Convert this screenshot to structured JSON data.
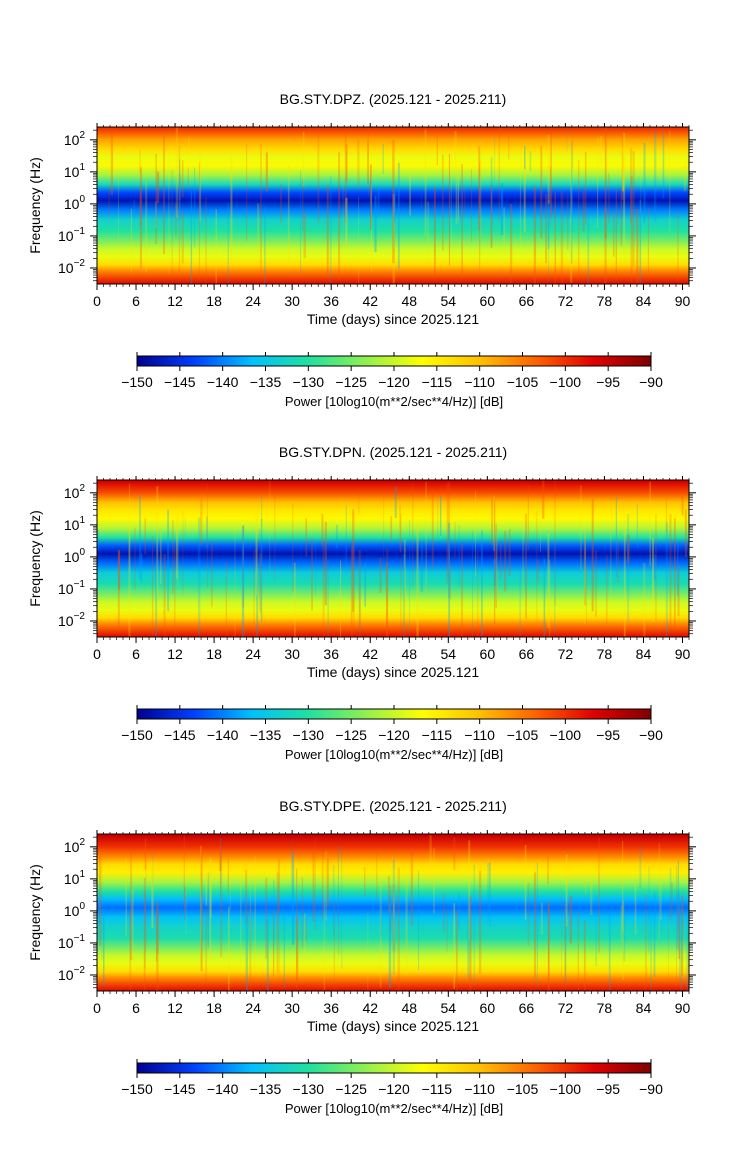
{
  "chart_data": [
    {
      "type": "heatmap",
      "title": "BG.STY.DPZ. (2025.121 - 2025.211)",
      "xlabel": "Time (days) since 2025.121",
      "ylabel": "Frequency (Hz)",
      "xlim": [
        0,
        91
      ],
      "ylim_log10": [
        -2.5,
        2.4
      ],
      "y_scale": "log",
      "x_ticks": [
        "0",
        "6",
        "12",
        "18",
        "24",
        "30",
        "36",
        "42",
        "48",
        "54",
        "60",
        "66",
        "72",
        "78",
        "84",
        "90"
      ],
      "y_ticks": [
        {
          "base": "10",
          "exp": "2"
        },
        {
          "base": "10",
          "exp": "1"
        },
        {
          "base": "10",
          "exp": "0"
        },
        {
          "base": "10",
          "exp": "−1"
        },
        {
          "base": "10",
          "exp": "−2"
        }
      ],
      "profile_db": [
        {
          "log10f": 2.35,
          "db": -100
        },
        {
          "log10f": 2.0,
          "db": -108
        },
        {
          "log10f": 1.7,
          "db": -113
        },
        {
          "log10f": 1.45,
          "db": -118
        },
        {
          "log10f": 1.2,
          "db": -116
        },
        {
          "log10f": 0.9,
          "db": -122
        },
        {
          "log10f": 0.6,
          "db": -132
        },
        {
          "log10f": 0.35,
          "db": -143
        },
        {
          "log10f": 0.1,
          "db": -148
        },
        {
          "log10f": -0.2,
          "db": -140
        },
        {
          "log10f": -0.5,
          "db": -133
        },
        {
          "log10f": -0.85,
          "db": -130
        },
        {
          "log10f": -1.2,
          "db": -124
        },
        {
          "log10f": -1.4,
          "db": -120
        },
        {
          "log10f": -1.65,
          "db": -118
        },
        {
          "log10f": -1.9,
          "db": -113
        },
        {
          "log10f": -2.1,
          "db": -106
        },
        {
          "log10f": -2.5,
          "db": -97
        }
      ],
      "colorbar": {
        "label": "Power [10log10(m**2/sec**4/Hz)] [dB]",
        "min": -150,
        "max": -90,
        "ticks": [
          "−150",
          "−145",
          "−140",
          "−135",
          "−130",
          "−125",
          "−120",
          "−115",
          "−110",
          "−105",
          "−100",
          "−95",
          "−90"
        ]
      }
    },
    {
      "type": "heatmap",
      "title": "BG.STY.DPN. (2025.121 - 2025.211)",
      "xlabel": "Time (days) since 2025.121",
      "ylabel": "Frequency (Hz)",
      "xlim": [
        0,
        91
      ],
      "ylim_log10": [
        -2.5,
        2.4
      ],
      "y_scale": "log",
      "x_ticks": [
        "0",
        "6",
        "12",
        "18",
        "24",
        "30",
        "36",
        "42",
        "48",
        "54",
        "60",
        "66",
        "72",
        "78",
        "84",
        "90"
      ],
      "y_ticks": [
        {
          "base": "10",
          "exp": "2"
        },
        {
          "base": "10",
          "exp": "1"
        },
        {
          "base": "10",
          "exp": "0"
        },
        {
          "base": "10",
          "exp": "−1"
        },
        {
          "base": "10",
          "exp": "−2"
        }
      ],
      "profile_db": [
        {
          "log10f": 2.35,
          "db": -96
        },
        {
          "log10f": 2.0,
          "db": -102
        },
        {
          "log10f": 1.7,
          "db": -110
        },
        {
          "log10f": 1.45,
          "db": -114
        },
        {
          "log10f": 1.2,
          "db": -116
        },
        {
          "log10f": 0.9,
          "db": -121
        },
        {
          "log10f": 0.6,
          "db": -130
        },
        {
          "log10f": 0.35,
          "db": -142
        },
        {
          "log10f": 0.1,
          "db": -148
        },
        {
          "log10f": -0.2,
          "db": -141
        },
        {
          "log10f": -0.5,
          "db": -134
        },
        {
          "log10f": -0.85,
          "db": -131
        },
        {
          "log10f": -1.2,
          "db": -124
        },
        {
          "log10f": -1.4,
          "db": -120
        },
        {
          "log10f": -1.65,
          "db": -118
        },
        {
          "log10f": -1.9,
          "db": -113
        },
        {
          "log10f": -2.1,
          "db": -106
        },
        {
          "log10f": -2.5,
          "db": -97
        }
      ],
      "colorbar": {
        "label": "Power [10log10(m**2/sec**4/Hz)] [dB]",
        "min": -150,
        "max": -90,
        "ticks": [
          "−150",
          "−145",
          "−140",
          "−135",
          "−130",
          "−125",
          "−120",
          "−115",
          "−110",
          "−105",
          "−100",
          "−95",
          "−90"
        ]
      }
    },
    {
      "type": "heatmap",
      "title": "BG.STY.DPE. (2025.121 - 2025.211)",
      "xlabel": "Time (days) since 2025.121",
      "ylabel": "Frequency (Hz)",
      "xlim": [
        0,
        91
      ],
      "ylim_log10": [
        -2.5,
        2.4
      ],
      "y_scale": "log",
      "x_ticks": [
        "0",
        "6",
        "12",
        "18",
        "24",
        "30",
        "36",
        "42",
        "48",
        "54",
        "60",
        "66",
        "72",
        "78",
        "84",
        "90"
      ],
      "y_ticks": [
        {
          "base": "10",
          "exp": "2"
        },
        {
          "base": "10",
          "exp": "1"
        },
        {
          "base": "10",
          "exp": "0"
        },
        {
          "base": "10",
          "exp": "−1"
        },
        {
          "base": "10",
          "exp": "−2"
        }
      ],
      "profile_db": [
        {
          "log10f": 2.35,
          "db": -95
        },
        {
          "log10f": 2.0,
          "db": -100
        },
        {
          "log10f": 1.7,
          "db": -106
        },
        {
          "log10f": 1.45,
          "db": -113
        },
        {
          "log10f": 1.2,
          "db": -115
        },
        {
          "log10f": 0.9,
          "db": -122
        },
        {
          "log10f": 0.6,
          "db": -130
        },
        {
          "log10f": 0.35,
          "db": -137
        },
        {
          "log10f": 0.1,
          "db": -141
        },
        {
          "log10f": -0.2,
          "db": -136
        },
        {
          "log10f": -0.5,
          "db": -133
        },
        {
          "log10f": -0.85,
          "db": -131
        },
        {
          "log10f": -1.2,
          "db": -124
        },
        {
          "log10f": -1.4,
          "db": -120
        },
        {
          "log10f": -1.65,
          "db": -118
        },
        {
          "log10f": -1.9,
          "db": -113
        },
        {
          "log10f": -2.1,
          "db": -106
        },
        {
          "log10f": -2.5,
          "db": -97
        }
      ],
      "colorbar": {
        "label": "Power [10log10(m**2/sec**4/Hz)] [dB]",
        "min": -150,
        "max": -90,
        "ticks": [
          "−150",
          "−145",
          "−140",
          "−135",
          "−130",
          "−125",
          "−120",
          "−115",
          "−110",
          "−105",
          "−100",
          "−95",
          "−90"
        ]
      }
    }
  ],
  "colormap": [
    "#00008f",
    "#0040ff",
    "#00c0ff",
    "#20e0a0",
    "#90f050",
    "#ffff00",
    "#ffc000",
    "#ff6000",
    "#e00000",
    "#800000"
  ]
}
